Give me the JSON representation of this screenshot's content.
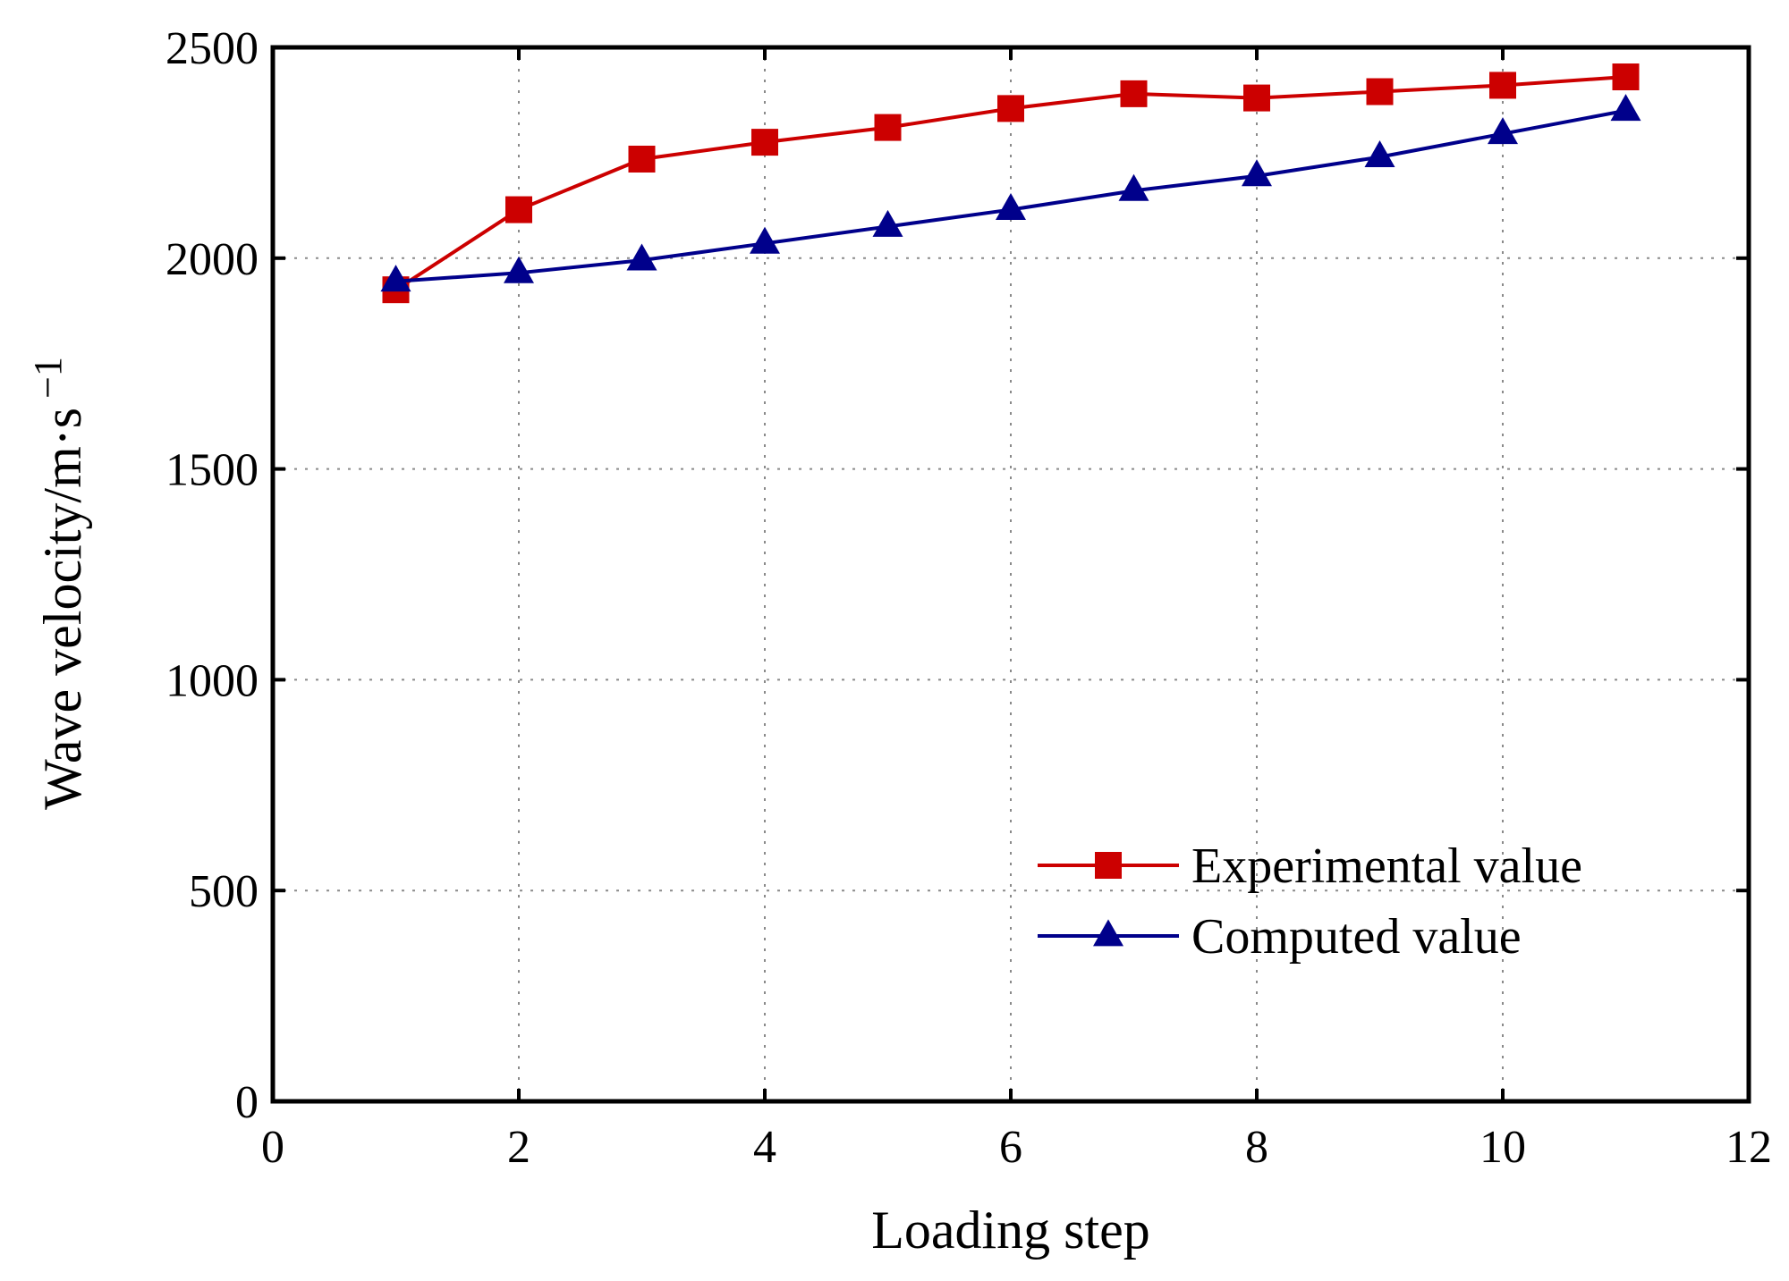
{
  "chart_data": {
    "type": "line",
    "title": "",
    "xlabel": "Loading step",
    "ylabel": "Wave velocity/m·s",
    "ylabel_superscript": "−1",
    "xlim": [
      0,
      12
    ],
    "ylim": [
      0,
      2500
    ],
    "xticks": [
      0,
      2,
      4,
      6,
      8,
      10,
      12
    ],
    "yticks": [
      0,
      500,
      1000,
      1500,
      2000,
      2500
    ],
    "grid": true,
    "legend_position": "bottom-right",
    "x": [
      1,
      2,
      3,
      4,
      5,
      6,
      7,
      8,
      9,
      10,
      11
    ],
    "series": [
      {
        "name": "Experimental value",
        "marker": "square",
        "color": "#cc0000",
        "values": [
          1925,
          2115,
          2235,
          2275,
          2310,
          2355,
          2390,
          2380,
          2395,
          2410,
          2430
        ]
      },
      {
        "name": "Computed value",
        "marker": "triangle",
        "color": "#00008b",
        "values": [
          1945,
          1965,
          1995,
          2035,
          2075,
          2115,
          2160,
          2195,
          2240,
          2295,
          2350
        ]
      }
    ]
  }
}
